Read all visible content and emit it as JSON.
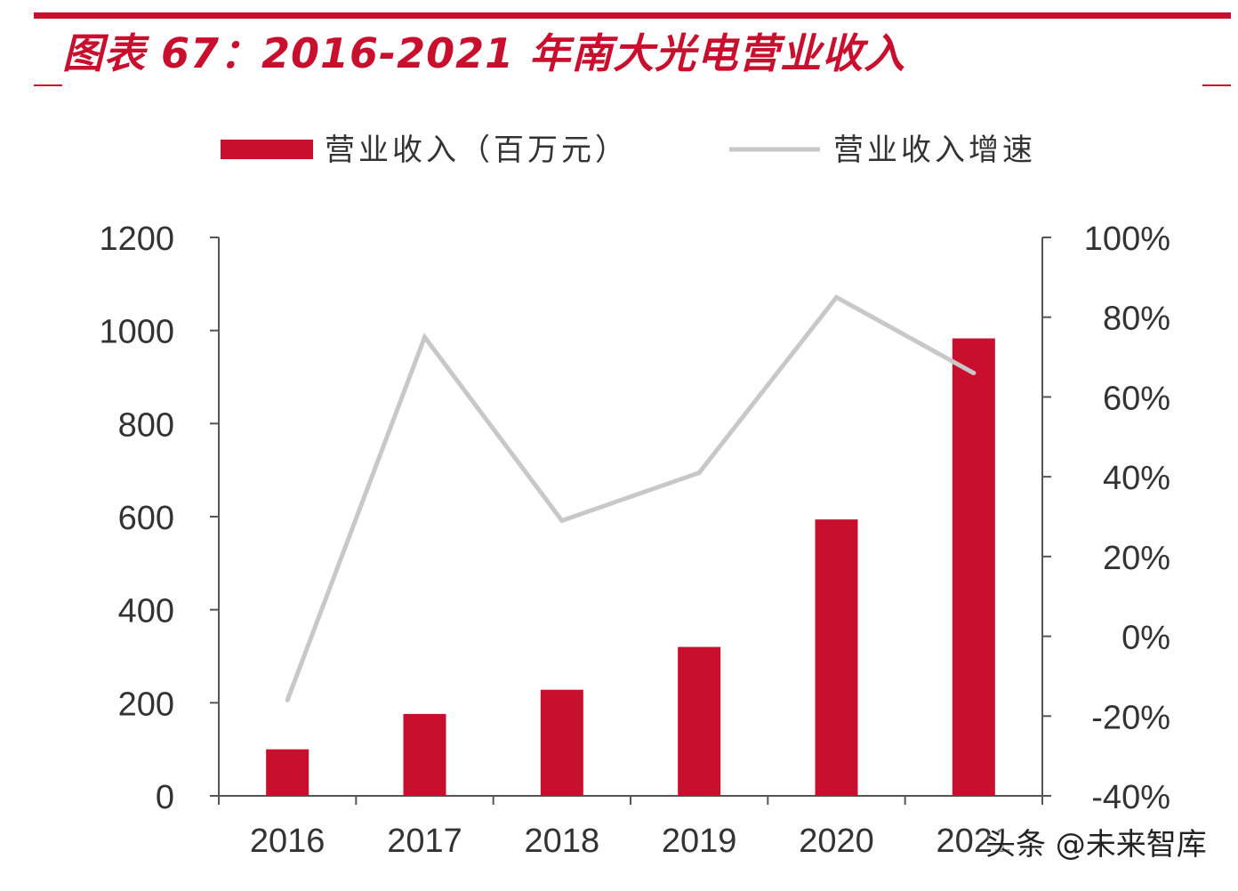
{
  "title": "图表 67：2016-2021 年南大光电营业收入",
  "watermark": "头条 @未来智库",
  "colors": {
    "bar": "#c8102e",
    "line": "#c8c8c8",
    "axis": "#555555",
    "title": "#c8102e"
  },
  "chart_data": {
    "type": "bar",
    "categories": [
      "2016",
      "2017",
      "2018",
      "2019",
      "2020",
      "2021"
    ],
    "series": [
      {
        "name": "营业收入（百万元）",
        "type": "bar",
        "axis": "left",
        "values": [
          100,
          176,
          228,
          320,
          594,
          983
        ]
      },
      {
        "name": "营业收入增速",
        "type": "line",
        "axis": "right",
        "values": [
          -16,
          75,
          29,
          41,
          85,
          66
        ]
      }
    ],
    "ylim": [
      0,
      1200
    ],
    "yticks": [
      "0",
      "200",
      "400",
      "600",
      "800",
      "1000",
      "1200"
    ],
    "y2lim": [
      -40,
      100
    ],
    "y2ticks": [
      "-40%",
      "-20%",
      "0%",
      "20%",
      "40%",
      "60%",
      "80%",
      "100%"
    ],
    "legend_position": "top",
    "grid": false
  }
}
